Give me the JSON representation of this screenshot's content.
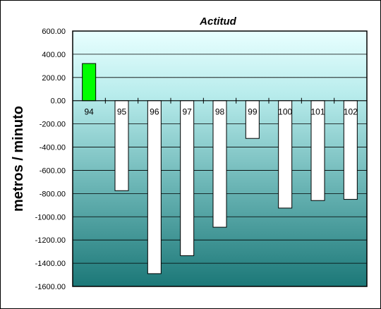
{
  "chart_data": {
    "type": "bar",
    "title": "Actitud",
    "xlabel": "",
    "ylabel": "metros / minuto",
    "ylim": [
      -1600,
      600
    ],
    "ytick_step": 200,
    "ytick_labels": [
      "600.00",
      "400.00",
      "200.00",
      "0.00",
      "-200.00",
      "-400.00",
      "-600.00",
      "-800.00",
      "-1000.00",
      "-1200.00",
      "-1400.00",
      "-1600.00"
    ],
    "categories": [
      "94",
      "95",
      "96",
      "97",
      "98",
      "99",
      "100",
      "101",
      "102"
    ],
    "series": [
      {
        "values": [
          320,
          -775,
          -1490,
          -1335,
          -1090,
          -325,
          -925,
          -860,
          -850
        ]
      }
    ],
    "highlight_index": 0,
    "colors": {
      "positive_bar": "#00ff00",
      "negative_bar": "#ffffff",
      "plot_top": "#e8ffff",
      "plot_bottom": "#1c7878",
      "border": "#000000"
    },
    "grid": true,
    "legend": "none"
  }
}
